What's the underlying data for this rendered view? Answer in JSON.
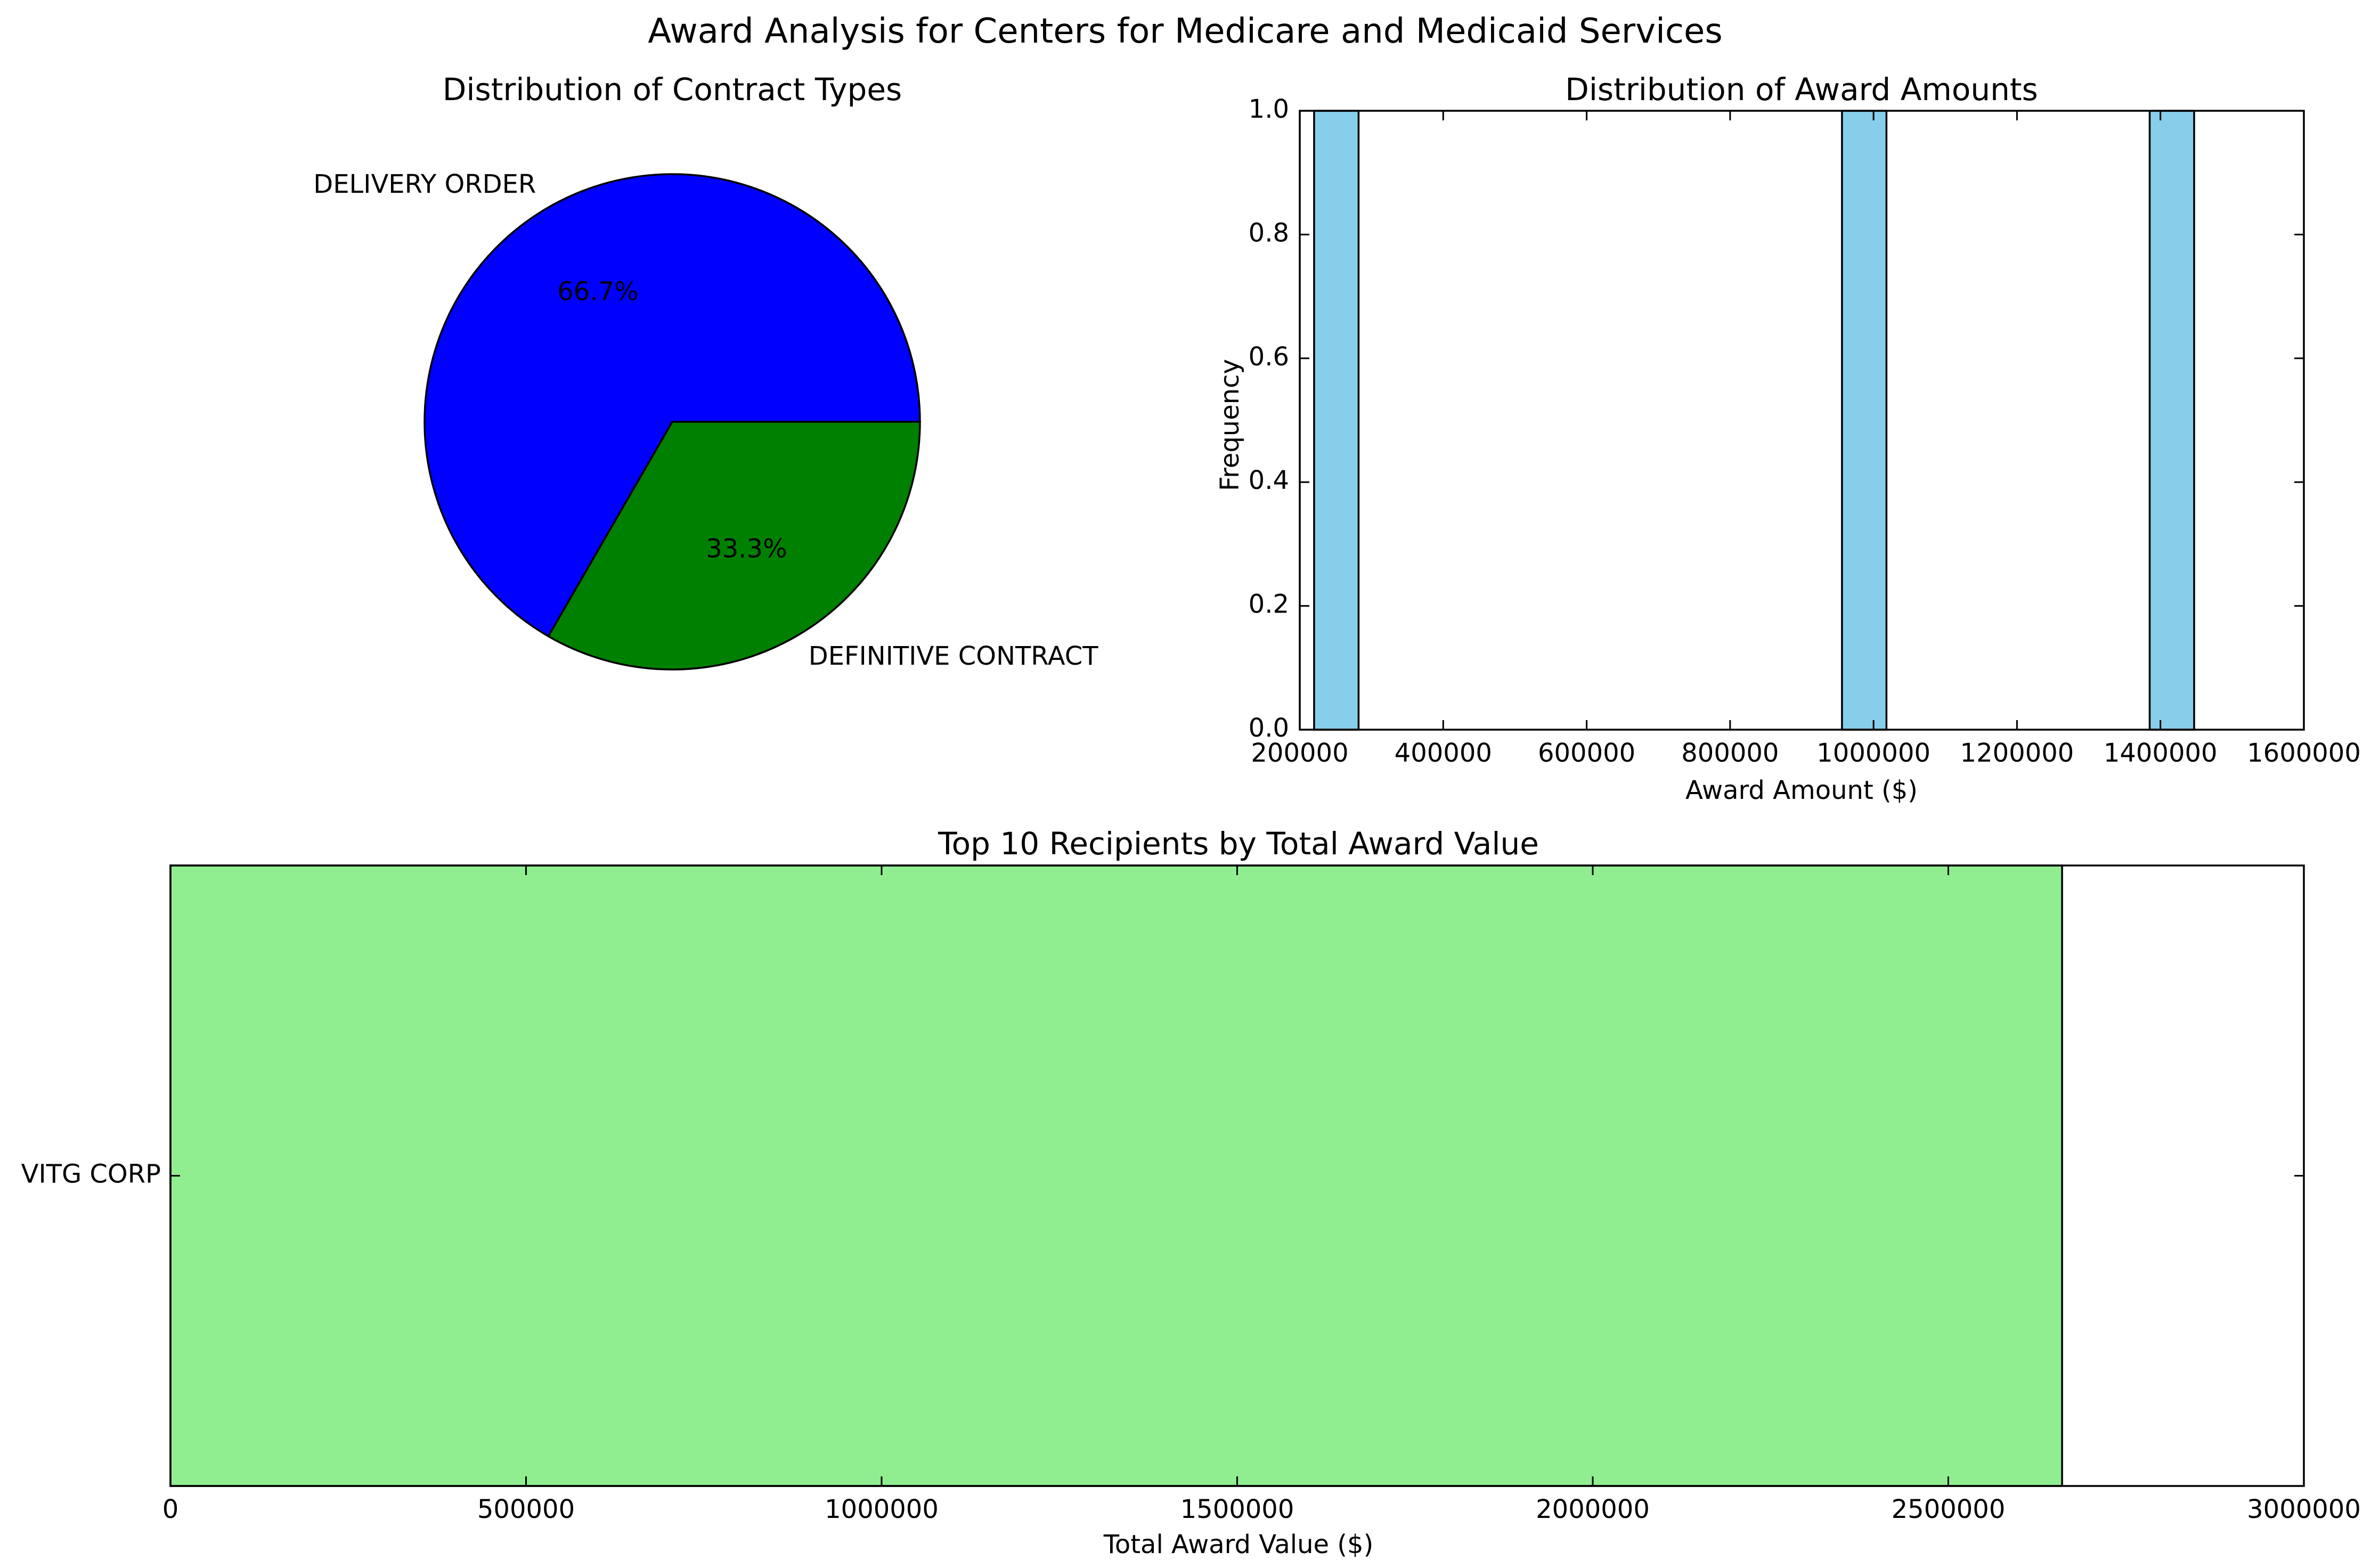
{
  "figure": {
    "title": "Award Analysis for Centers for Medicare and Medicaid Services"
  },
  "chart_data": [
    {
      "type": "pie",
      "title": "Distribution of Contract Types",
      "slices": [
        {
          "label": "DELIVERY ORDER",
          "value": 2,
          "percent_label": "66.7%",
          "color": "#0000ff"
        },
        {
          "label": "DEFINITIVE CONTRACT",
          "value": 1,
          "percent_label": "33.3%",
          "color": "#008000"
        }
      ]
    },
    {
      "type": "bar",
      "subtype": "histogram",
      "title": "Distribution of Award Amounts",
      "xlabel": "Award Amount ($)",
      "ylabel": "Frequency",
      "xlim": [
        200000,
        1600000
      ],
      "ylim": [
        0,
        1.0
      ],
      "xticks": [
        "200000",
        "400000",
        "600000",
        "800000",
        "1000000",
        "1200000",
        "1400000",
        "1600000"
      ],
      "yticks": [
        "0.0",
        "0.2",
        "0.4",
        "0.6",
        "0.8",
        "1.0"
      ],
      "bars": [
        {
          "x0": 220000,
          "x1": 282000,
          "count": 1
        },
        {
          "x0": 956000,
          "x1": 1018000,
          "count": 1
        },
        {
          "x0": 1385000,
          "x1": 1447000,
          "count": 1
        }
      ],
      "color": "#87ceeb"
    },
    {
      "type": "bar",
      "orientation": "horizontal",
      "title": "Top 10 Recipients by Total Award Value",
      "xlabel": "Total Award Value ($)",
      "ylabel": "",
      "xlim": [
        0,
        3000000
      ],
      "xticks": [
        "0",
        "500000",
        "1000000",
        "1500000",
        "2000000",
        "2500000",
        "3000000"
      ],
      "categories": [
        "VITG CORP"
      ],
      "values": [
        2660000
      ],
      "color": "#90ee90"
    }
  ]
}
